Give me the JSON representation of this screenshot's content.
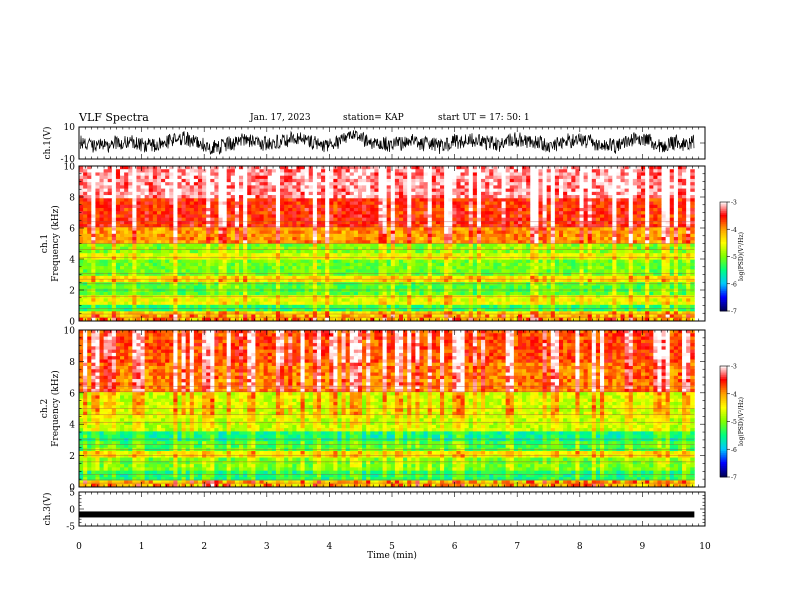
{
  "header": {
    "title": "VLF Spectra",
    "date": "Jan. 17, 2023",
    "station": "station= KAP",
    "start_ut": "start  UT  =   17: 50: 1"
  },
  "chart_data": [
    {
      "type": "line",
      "panel": "ch1-waveform",
      "ylabel": "ch.1(V)",
      "ylim": [
        -10,
        10
      ],
      "y_tick_labels": [
        "-10",
        "10"
      ],
      "x_range": [
        0,
        9.83
      ],
      "color": "#000000",
      "description_values": "noisy waveform, roughly between -8 and 8 V"
    },
    {
      "type": "heatmap",
      "panel": "ch1-spectrogram",
      "ylabel": "ch.1\nFrequency  (kHz)",
      "ylim": [
        0,
        10
      ],
      "y_tick_labels": [
        "0",
        "2",
        "4",
        "6",
        "8",
        "10"
      ],
      "x_range": [
        0,
        9.83
      ],
      "frequency_bands_log_psd": [
        {
          "fmin": 0,
          "fmax": 0.6,
          "level": -4.3
        },
        {
          "fmin": 0.6,
          "fmax": 1.0,
          "level": -5.4
        },
        {
          "fmin": 1.0,
          "fmax": 1.6,
          "level": -4.6
        },
        {
          "fmin": 1.6,
          "fmax": 2.6,
          "level": -5.2
        },
        {
          "fmin": 2.6,
          "fmax": 3.0,
          "level": -4.4
        },
        {
          "fmin": 3.0,
          "fmax": 3.9,
          "level": -5.1
        },
        {
          "fmin": 3.9,
          "fmax": 4.3,
          "level": -4.6
        },
        {
          "fmin": 4.3,
          "fmax": 5.0,
          "level": -5.0
        },
        {
          "fmin": 5.0,
          "fmax": 6.0,
          "level": -4.0
        },
        {
          "fmin": 6.0,
          "fmax": 8.0,
          "level": -3.6
        },
        {
          "fmin": 8.0,
          "fmax": 10.0,
          "level": -3.2
        }
      ]
    },
    {
      "type": "heatmap",
      "panel": "ch2-spectrogram",
      "ylabel": "ch.2\nFrequency  (kHz)",
      "ylim": [
        0,
        10
      ],
      "y_tick_labels": [
        "0",
        "2",
        "4",
        "6",
        "8",
        "10"
      ],
      "x_range": [
        0,
        9.83
      ],
      "frequency_bands_log_psd": [
        {
          "fmin": 0,
          "fmax": 0.4,
          "level": -4.4
        },
        {
          "fmin": 0.4,
          "fmax": 1.0,
          "level": -5.5
        },
        {
          "fmin": 1.0,
          "fmax": 1.8,
          "level": -5.1
        },
        {
          "fmin": 1.8,
          "fmax": 2.2,
          "level": -4.5
        },
        {
          "fmin": 2.2,
          "fmax": 3.0,
          "level": -5.3
        },
        {
          "fmin": 3.0,
          "fmax": 3.6,
          "level": -5.6
        },
        {
          "fmin": 3.6,
          "fmax": 4.4,
          "level": -4.8
        },
        {
          "fmin": 4.4,
          "fmax": 6.0,
          "level": -4.7
        },
        {
          "fmin": 6.0,
          "fmax": 8.0,
          "level": -3.9
        },
        {
          "fmin": 8.0,
          "fmax": 10.0,
          "level": -3.7
        }
      ]
    },
    {
      "type": "line",
      "panel": "ch3-waveform",
      "ylabel": "ch.3(V)",
      "ylim": [
        -5,
        5
      ],
      "y_tick_labels": [
        "-5",
        "0",
        "5"
      ],
      "x_range": [
        0,
        9.83
      ],
      "color": "#000000",
      "approx_value": -1.6
    }
  ],
  "x_axis": {
    "label": "Time  (min)",
    "range": [
      0,
      10
    ],
    "tick_labels": [
      "0",
      "1",
      "2",
      "3",
      "4",
      "5",
      "6",
      "7",
      "8",
      "9",
      "10"
    ]
  },
  "colorbars": [
    {
      "label": "log(PSD)(V²/Hz)",
      "range": [
        -7,
        -3
      ],
      "tick_labels": [
        "-3",
        "-4",
        "-5",
        "-6",
        "-7"
      ]
    },
    {
      "label": "log(PSD)(V²/Hz)",
      "range": [
        -7,
        -3
      ],
      "tick_labels": [
        "-3",
        "-4",
        "-5",
        "-6",
        "-7"
      ]
    }
  ],
  "colors": {
    "colormap": [
      "#000050",
      "#0000ff",
      "#00c8ff",
      "#00ff80",
      "#80ff00",
      "#ffff00",
      "#ffa000",
      "#ff0000",
      "#ffffff"
    ],
    "waveform": "#000000"
  }
}
